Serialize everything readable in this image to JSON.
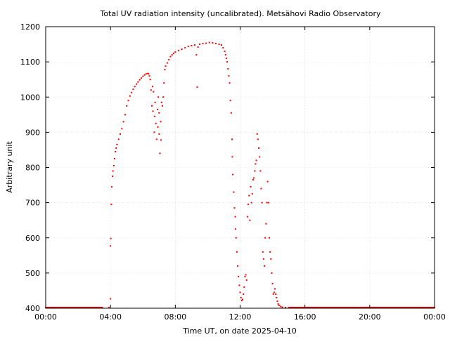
{
  "chart_data": {
    "type": "scatter",
    "title": "Total UV radiation intensity (uncalibrated). Metsähovi Radio Observatory",
    "xlabel": "Time UT, on date 2025-04-10",
    "ylabel": "Arbitrary unit",
    "xlim": [
      0,
      24
    ],
    "ylim": [
      400,
      1200
    ],
    "grid": true,
    "x_ticks": [
      0,
      4,
      8,
      12,
      16,
      20,
      24
    ],
    "x_tick_labels": [
      "00:00",
      "04:00",
      "08:00",
      "12:00",
      "16:00",
      "20:00",
      "00:00"
    ],
    "y_ticks": [
      400,
      500,
      600,
      700,
      800,
      900,
      1000,
      1100,
      1200
    ],
    "y_tick_labels": [
      "400",
      "500",
      "600",
      "700",
      "800",
      "900",
      "1000",
      "1100",
      "1200"
    ],
    "series": [
      {
        "color": "#ff0000",
        "points": [
          [
            0.0,
            402
          ],
          [
            0.5,
            402
          ],
          [
            1.0,
            402
          ],
          [
            1.5,
            402
          ],
          [
            2.0,
            402
          ],
          [
            2.5,
            402
          ],
          [
            3.0,
            402
          ],
          [
            3.5,
            402
          ],
          [
            3.9,
            402
          ],
          [
            4.0,
            427
          ],
          [
            4.0,
            577
          ],
          [
            4.02,
            598
          ],
          [
            4.05,
            695
          ],
          [
            4.08,
            745
          ],
          [
            4.12,
            775
          ],
          [
            4.15,
            790
          ],
          [
            4.2,
            805
          ],
          [
            4.25,
            825
          ],
          [
            4.3,
            845
          ],
          [
            4.35,
            855
          ],
          [
            4.4,
            865
          ],
          [
            4.5,
            880
          ],
          [
            4.6,
            895
          ],
          [
            4.7,
            910
          ],
          [
            4.8,
            930
          ],
          [
            4.9,
            950
          ],
          [
            5.0,
            975
          ],
          [
            5.1,
            990
          ],
          [
            5.2,
            1003
          ],
          [
            5.3,
            1013
          ],
          [
            5.4,
            1022
          ],
          [
            5.5,
            1030
          ],
          [
            5.6,
            1037
          ],
          [
            5.7,
            1043
          ],
          [
            5.8,
            1049
          ],
          [
            5.9,
            1054
          ],
          [
            6.0,
            1059
          ],
          [
            6.1,
            1063
          ],
          [
            6.2,
            1066
          ],
          [
            6.3,
            1067
          ],
          [
            6.35,
            1066
          ],
          [
            6.4,
            1060
          ],
          [
            6.45,
            1050
          ],
          [
            6.5,
            1020
          ],
          [
            6.55,
            975
          ],
          [
            6.6,
            1030
          ],
          [
            6.62,
            960
          ],
          [
            6.65,
            1015
          ],
          [
            6.7,
            900
          ],
          [
            6.72,
            945
          ],
          [
            6.75,
            985
          ],
          [
            6.8,
            925
          ],
          [
            6.85,
            880
          ],
          [
            6.9,
            965
          ],
          [
            6.92,
            915
          ],
          [
            6.95,
            1000
          ],
          [
            7.0,
            955
          ],
          [
            7.0,
            895
          ],
          [
            7.05,
            840
          ],
          [
            7.1,
            930
          ],
          [
            7.12,
            878
          ],
          [
            7.15,
            985
          ],
          [
            7.2,
            975
          ],
          [
            7.25,
            1000
          ],
          [
            7.3,
            1040
          ],
          [
            7.35,
            1078
          ],
          [
            7.4,
            1088
          ],
          [
            7.5,
            1097
          ],
          [
            7.6,
            1106
          ],
          [
            7.7,
            1115
          ],
          [
            7.8,
            1120
          ],
          [
            7.9,
            1124
          ],
          [
            8.0,
            1128
          ],
          [
            8.2,
            1132
          ],
          [
            8.4,
            1136
          ],
          [
            8.6,
            1140
          ],
          [
            8.8,
            1144
          ],
          [
            9.0,
            1146
          ],
          [
            9.2,
            1148
          ],
          [
            9.3,
            1120
          ],
          [
            9.35,
            1028
          ],
          [
            9.4,
            1142
          ],
          [
            9.5,
            1150
          ],
          [
            9.7,
            1152
          ],
          [
            9.9,
            1153
          ],
          [
            10.1,
            1155
          ],
          [
            10.3,
            1154
          ],
          [
            10.5,
            1152
          ],
          [
            10.7,
            1150
          ],
          [
            10.85,
            1148
          ],
          [
            10.95,
            1140
          ],
          [
            11.05,
            1130
          ],
          [
            11.1,
            1120
          ],
          [
            11.15,
            1110
          ],
          [
            11.2,
            1100
          ],
          [
            11.25,
            1080
          ],
          [
            11.3,
            1060
          ],
          [
            11.35,
            1040
          ],
          [
            11.4,
            990
          ],
          [
            11.45,
            955
          ],
          [
            11.5,
            880
          ],
          [
            11.52,
            830
          ],
          [
            11.55,
            780
          ],
          [
            11.6,
            730
          ],
          [
            11.65,
            685
          ],
          [
            11.7,
            660
          ],
          [
            11.72,
            625
          ],
          [
            11.75,
            600
          ],
          [
            11.8,
            560
          ],
          [
            11.85,
            520
          ],
          [
            11.9,
            490
          ],
          [
            11.95,
            465
          ],
          [
            12.0,
            445
          ],
          [
            12.05,
            430
          ],
          [
            12.1,
            422
          ],
          [
            12.15,
            425
          ],
          [
            12.2,
            440
          ],
          [
            12.25,
            460
          ],
          [
            12.3,
            490
          ],
          [
            12.35,
            495
          ],
          [
            12.4,
            480
          ],
          [
            12.45,
            660
          ],
          [
            12.5,
            695
          ],
          [
            12.55,
            720
          ],
          [
            12.6,
            650
          ],
          [
            12.65,
            745
          ],
          [
            12.7,
            700
          ],
          [
            12.75,
            725
          ],
          [
            12.8,
            765
          ],
          [
            12.85,
            770
          ],
          [
            12.9,
            790
          ],
          [
            12.95,
            810
          ],
          [
            13.0,
            820
          ],
          [
            13.05,
            895
          ],
          [
            13.1,
            880
          ],
          [
            13.15,
            855
          ],
          [
            13.2,
            830
          ],
          [
            13.25,
            790
          ],
          [
            13.3,
            740
          ],
          [
            13.35,
            700
          ],
          [
            13.4,
            560
          ],
          [
            13.45,
            540
          ],
          [
            13.5,
            520
          ],
          [
            13.55,
            600
          ],
          [
            13.6,
            640
          ],
          [
            13.65,
            700
          ],
          [
            13.7,
            760
          ],
          [
            13.75,
            700
          ],
          [
            13.8,
            600
          ],
          [
            13.85,
            560
          ],
          [
            13.9,
            540
          ],
          [
            13.95,
            500
          ],
          [
            14.0,
            470
          ],
          [
            14.05,
            440
          ],
          [
            14.1,
            445
          ],
          [
            14.15,
            455
          ],
          [
            14.2,
            440
          ],
          [
            14.25,
            430
          ],
          [
            14.3,
            420
          ],
          [
            14.35,
            412
          ],
          [
            14.4,
            408
          ],
          [
            14.5,
            405
          ],
          [
            14.6,
            403
          ],
          [
            14.8,
            402
          ],
          [
            15.0,
            402
          ],
          [
            16.0,
            402
          ],
          [
            17.0,
            402
          ],
          [
            18.0,
            402
          ],
          [
            19.0,
            402
          ],
          [
            20.0,
            402
          ],
          [
            21.0,
            402
          ],
          [
            22.0,
            402
          ],
          [
            23.0,
            402
          ],
          [
            24.0,
            402
          ]
        ]
      }
    ]
  }
}
